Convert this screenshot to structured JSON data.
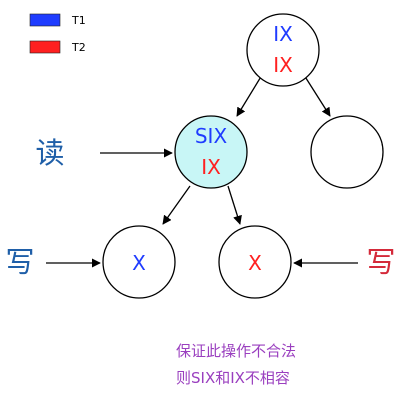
{
  "legend": [
    {
      "label": "T1",
      "color": "#1f3cff"
    },
    {
      "label": "T2",
      "color": "#ff2020"
    }
  ],
  "colors": {
    "t1": "#1f3cff",
    "t2": "#ff2020",
    "node_highlight": "#c8f6f6",
    "read_label": "#1f5fa8",
    "write_left": "#1f5fa8",
    "write_right": "#d42a3a",
    "note": "#9a3fbf"
  },
  "nodes": {
    "root": {
      "t1": "IX",
      "t2": "IX"
    },
    "left": {
      "t1": "SIX",
      "t2": "IX"
    },
    "right": {},
    "leaf_left": {
      "t1": "X"
    },
    "leaf_right": {
      "t2": "X"
    }
  },
  "labels": {
    "read": "读",
    "write_left": "写",
    "write_right": "写"
  },
  "note": {
    "line1": "保证此操作不合法",
    "line2": "则SIX和IX不相容"
  }
}
